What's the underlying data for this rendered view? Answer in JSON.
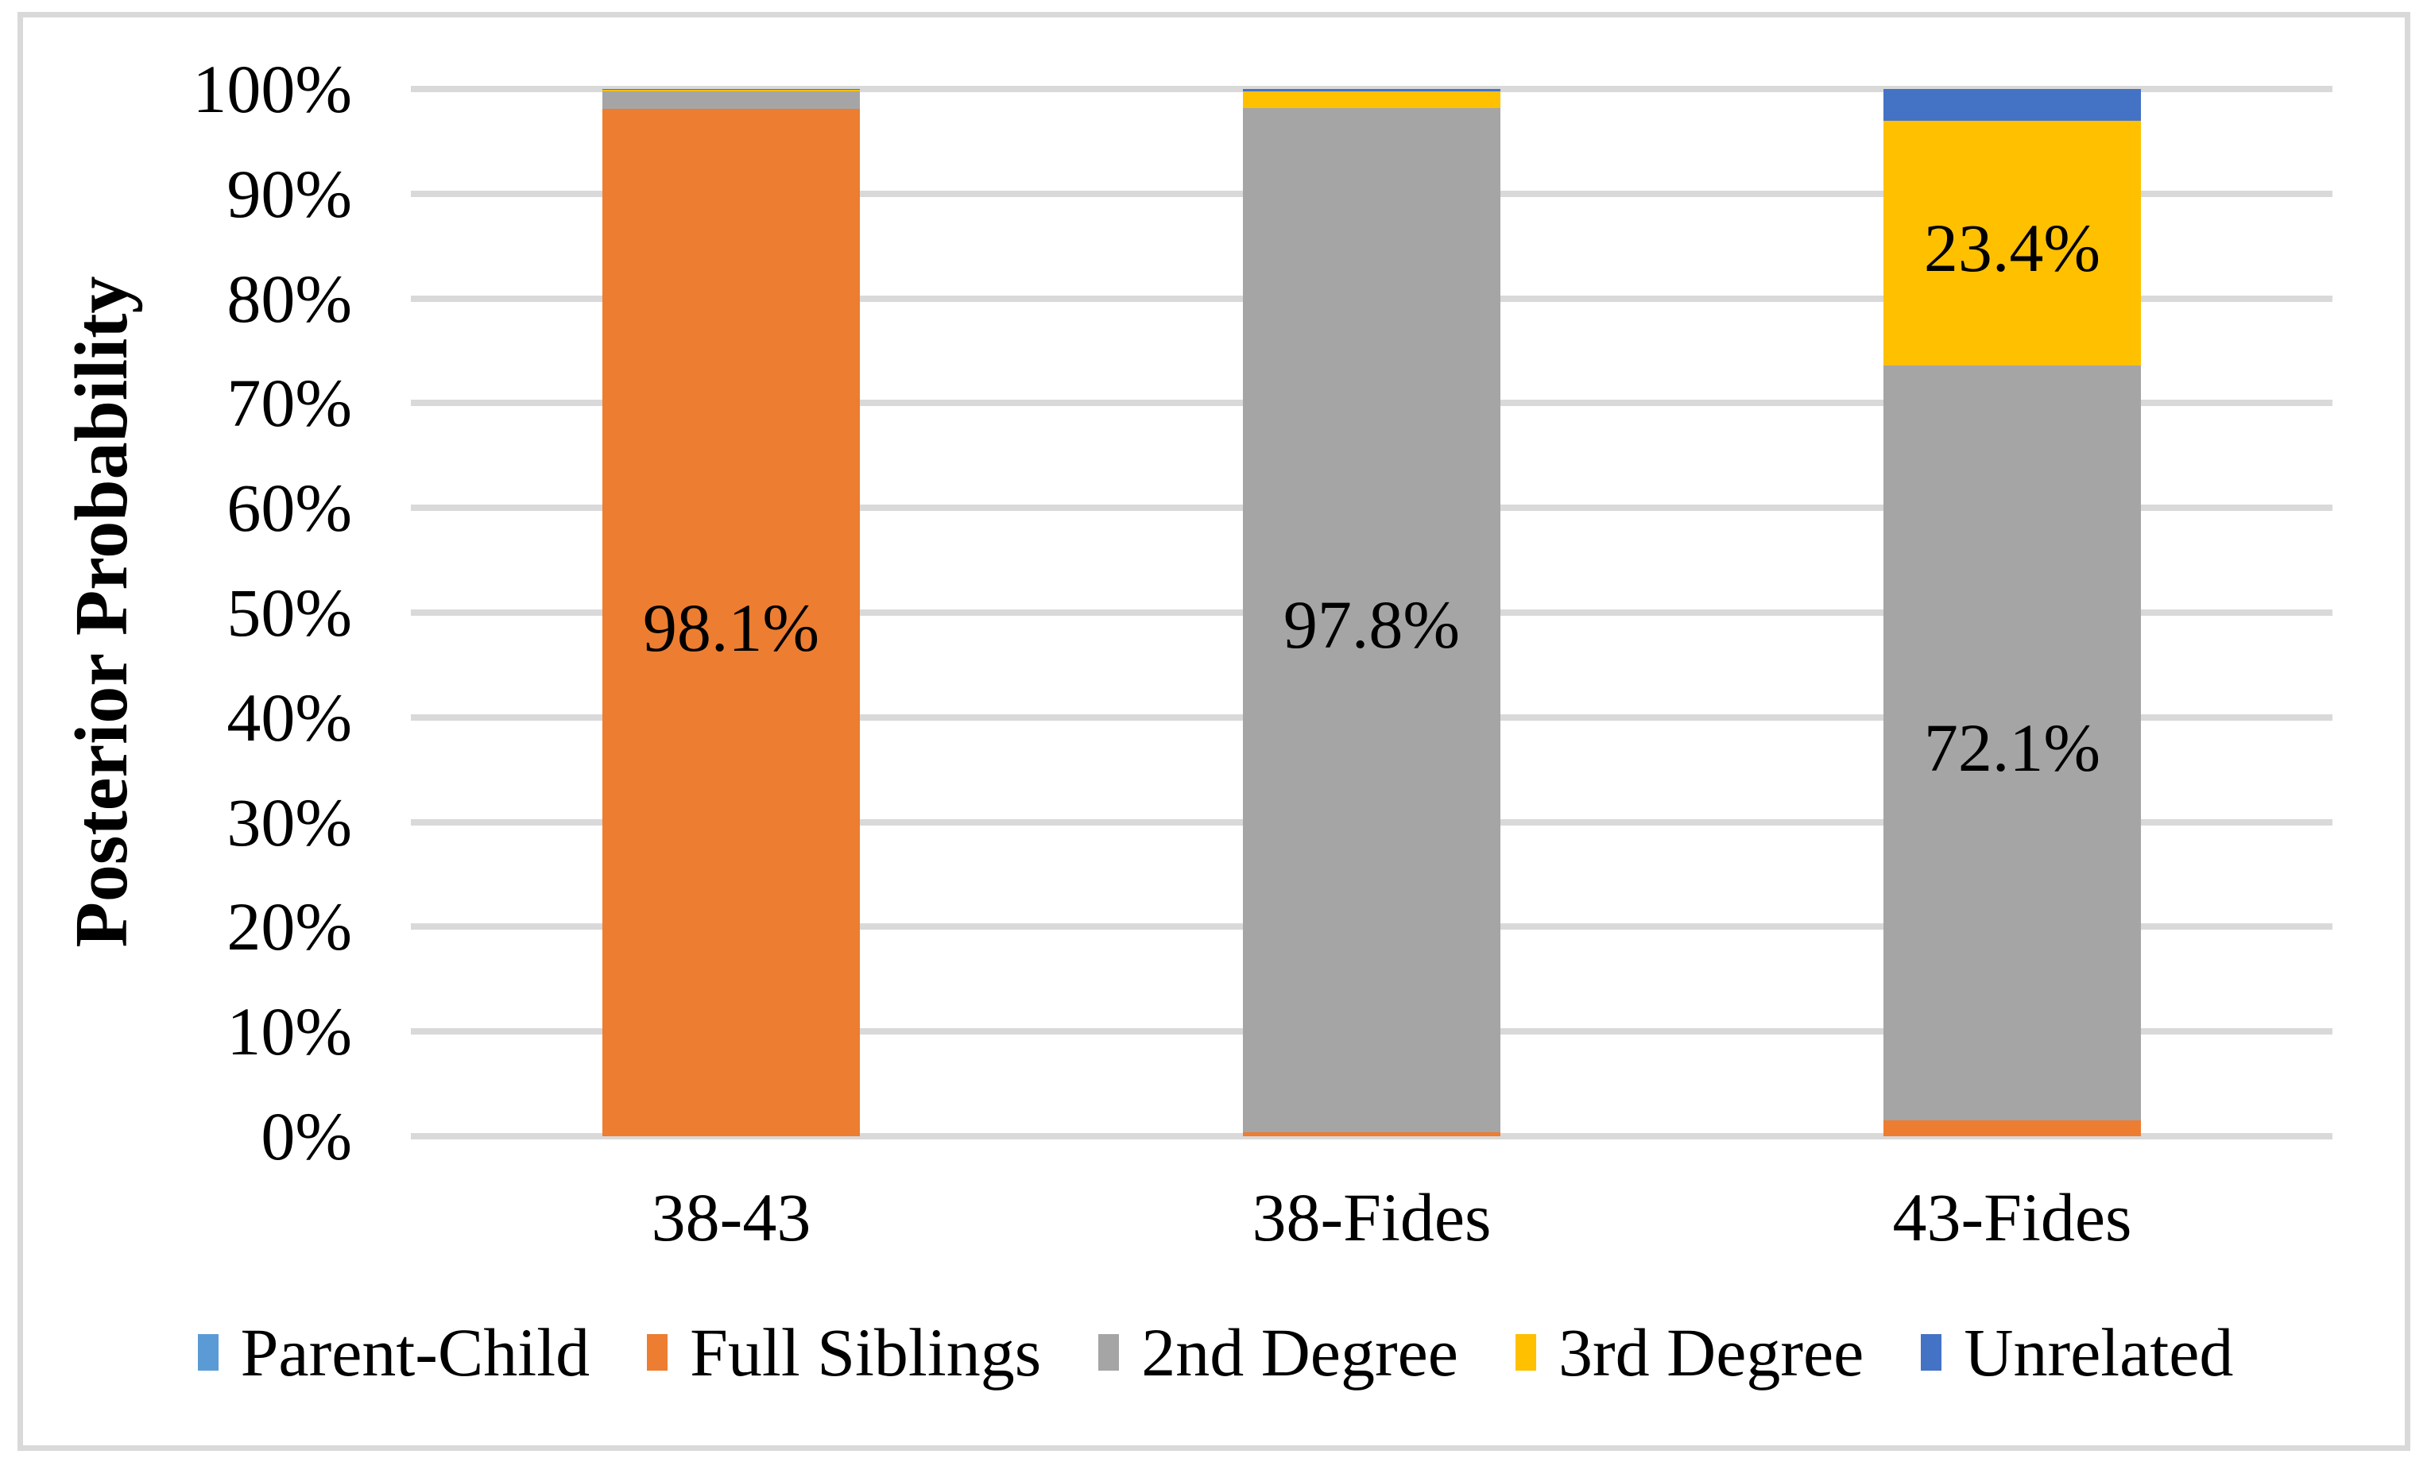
{
  "chart_data": {
    "type": "bar",
    "stacked": true,
    "orientation": "vertical",
    "title": "",
    "xlabel": "",
    "ylabel": "Posterior Probability",
    "categories": [
      "38-43",
      "38-Fides",
      "43-Fides"
    ],
    "series": [
      {
        "name": "Parent-Child",
        "color": "#5B9BD5",
        "values": [
          0.0,
          0.0,
          0.0
        ]
      },
      {
        "name": "Full Siblings",
        "color": "#ED7D31",
        "values": [
          98.1,
          0.4,
          1.5
        ]
      },
      {
        "name": "2nd Degree",
        "color": "#A5A5A5",
        "values": [
          1.7,
          97.8,
          72.1
        ]
      },
      {
        "name": "3rd Degree",
        "color": "#FFC000",
        "values": [
          0.1,
          1.6,
          23.4
        ]
      },
      {
        "name": "Unrelated",
        "color": "#4472C4",
        "values": [
          0.1,
          0.2,
          3.0
        ]
      }
    ],
    "data_labels": [
      {
        "category": 0,
        "series": 1,
        "text": "98.1%"
      },
      {
        "category": 1,
        "series": 2,
        "text": "97.8%"
      },
      {
        "category": 2,
        "series": 2,
        "text": "72.1%"
      },
      {
        "category": 2,
        "series": 3,
        "text": "23.4%"
      }
    ],
    "ylim": [
      0,
      100
    ],
    "yticks": [
      {
        "label": "0%",
        "value": 0
      },
      {
        "label": "10%",
        "value": 10
      },
      {
        "label": "20%",
        "value": 20
      },
      {
        "label": "30%",
        "value": 30
      },
      {
        "label": "40%",
        "value": 40
      },
      {
        "label": "50%",
        "value": 50
      },
      {
        "label": "60%",
        "value": 60
      },
      {
        "label": "70%",
        "value": 70
      },
      {
        "label": "80%",
        "value": 80
      },
      {
        "label": "90%",
        "value": 90
      },
      {
        "label": "100%",
        "value": 100
      }
    ],
    "grid": true,
    "legend_position": "bottom",
    "colors": {
      "gridline": "#D9D9D9",
      "chart_border": "#D9D9D9",
      "background": "#FFFFFF",
      "text": "#000000"
    }
  }
}
